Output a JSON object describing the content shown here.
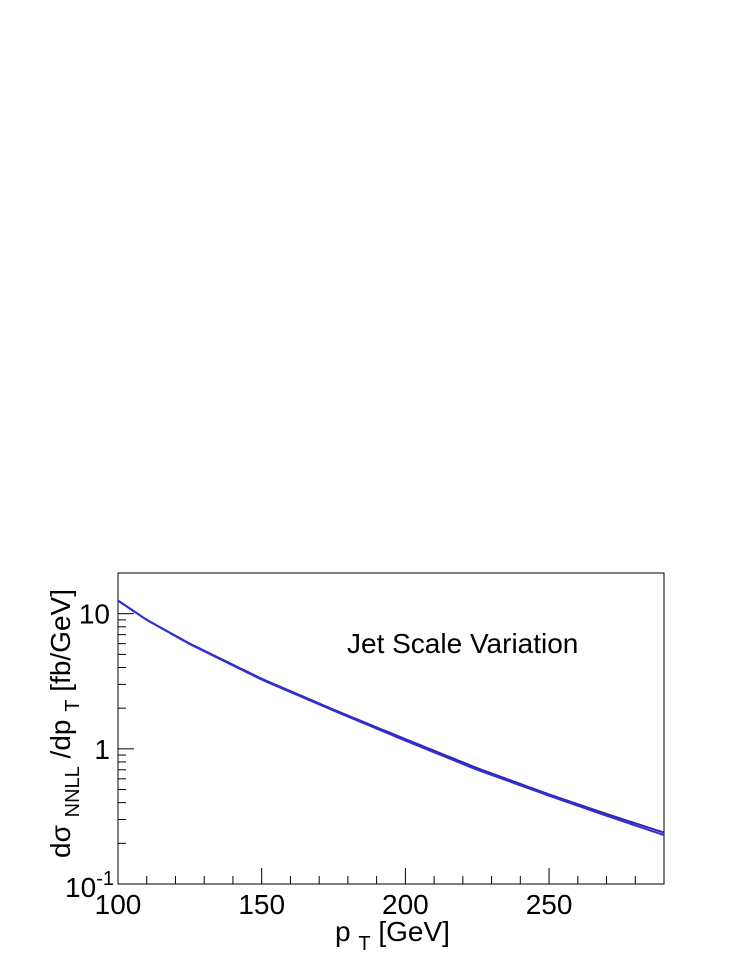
{
  "chart_data": {
    "type": "line",
    "annotation": "Jet Scale Variation",
    "xlabel": {
      "main": "p",
      "sub": "T",
      "rest": " [GeV]"
    },
    "ylabel": {
      "pre": "dσ",
      "sub1": "NNLL",
      "mid": "/dp",
      "sub2": "T",
      "rest": " [fb/GeV]"
    },
    "xlim": [
      100,
      290
    ],
    "ylim": [
      0.1,
      20
    ],
    "y_scale": "log",
    "grid": false,
    "x_ticks": [
      {
        "value": 100,
        "label": "100"
      },
      {
        "value": 150,
        "label": "150"
      },
      {
        "value": 200,
        "label": "200"
      },
      {
        "value": 250,
        "label": "250"
      }
    ],
    "y_ticks": [
      {
        "value": 0.1,
        "base": "10",
        "exp": "-1"
      },
      {
        "value": 1,
        "base": "1",
        "exp": ""
      },
      {
        "value": 10,
        "base": "10",
        "exp": ""
      }
    ],
    "series": [
      {
        "color": "#2b2bb8",
        "x": [
          100,
          110,
          125,
          150,
          175,
          200,
          225,
          250,
          270,
          290
        ],
        "y": [
          12.5,
          9.0,
          6.0,
          3.3,
          1.95,
          1.18,
          0.72,
          0.46,
          0.33,
          0.24
        ]
      },
      {
        "color": "#3030d0",
        "x": [
          100,
          110,
          125,
          150,
          175,
          200,
          225,
          250,
          270,
          290
        ],
        "y": [
          12.5,
          9.0,
          5.95,
          3.25,
          1.92,
          1.15,
          0.7,
          0.45,
          0.32,
          0.23
        ]
      }
    ]
  }
}
